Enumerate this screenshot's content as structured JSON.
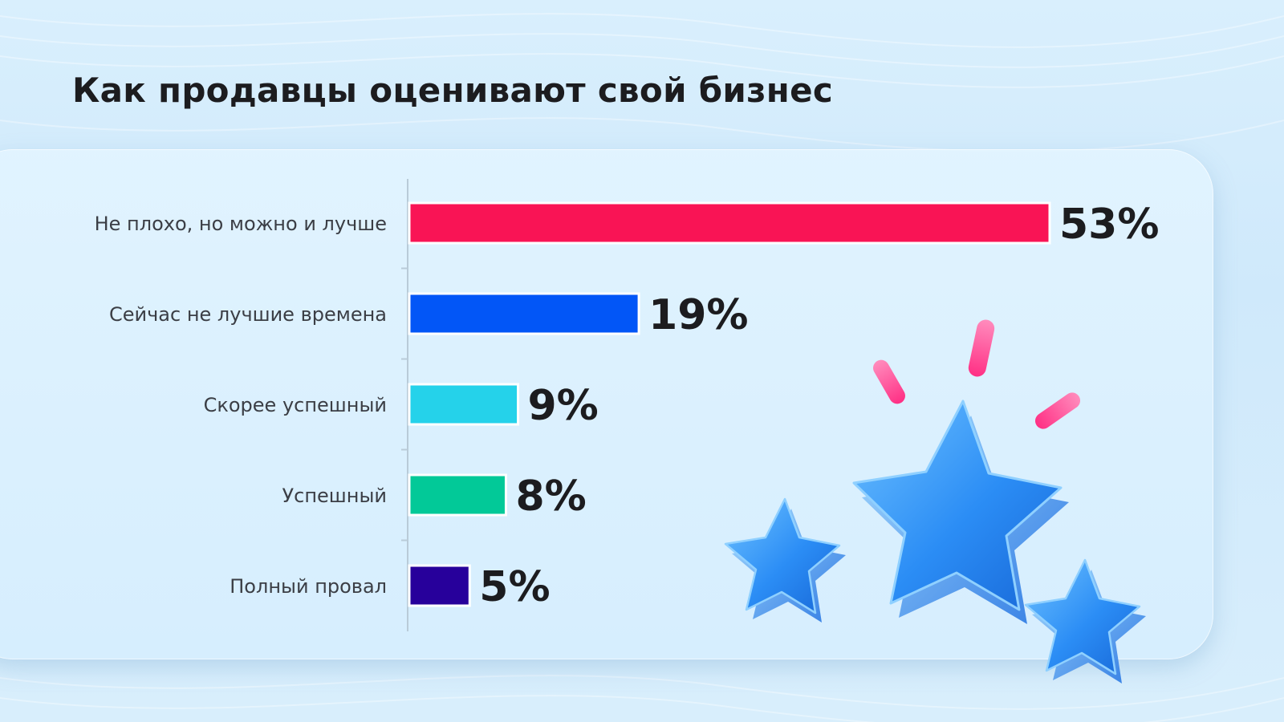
{
  "chart_data": {
    "type": "bar",
    "orientation": "horizontal",
    "title": "Как продавцы оценивают свой бизнес",
    "categories": [
      "Не плохо, но можно и лучше",
      "Сейчас не лучшие времена",
      "Скорее успешный",
      "Успешный",
      "Полный провал"
    ],
    "values": [
      53,
      19,
      9,
      8,
      5
    ],
    "value_labels": [
      "53%",
      "19%",
      "9%",
      "8%",
      "5%"
    ],
    "unit": "%",
    "colors": [
      "#f91455",
      "#0256f7",
      "#25d2ea",
      "#02c998",
      "#27009b"
    ],
    "xlim": [
      0,
      53
    ],
    "grid": false,
    "legend": "none"
  },
  "decoration": {
    "icons": [
      "star-icon",
      "star-icon",
      "star-icon",
      "sparkle-icon",
      "sparkle-icon",
      "sparkle-icon"
    ],
    "star_color": "#2b8df5",
    "sparkle_color": "#ff3f8e"
  }
}
